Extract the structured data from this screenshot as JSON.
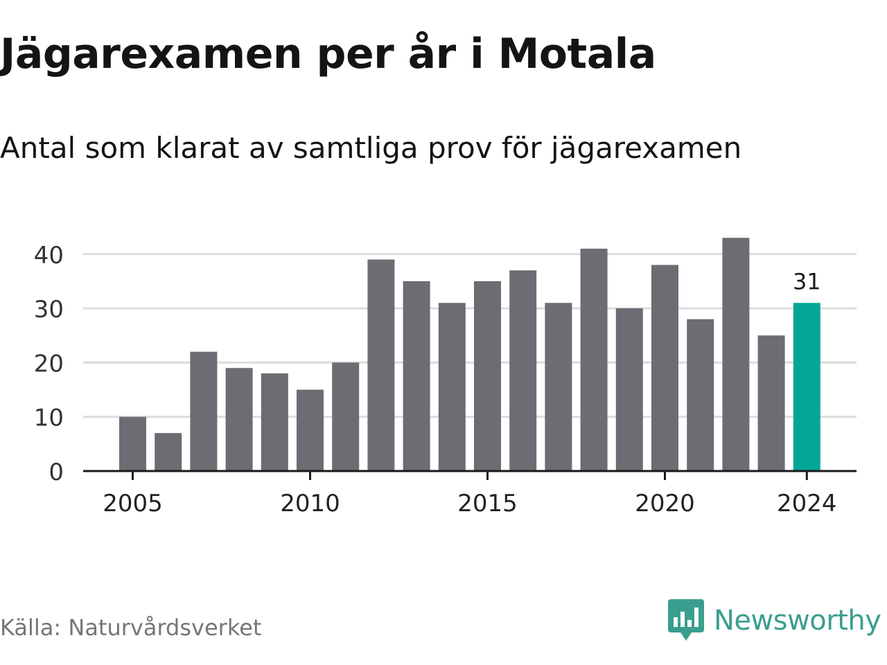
{
  "chart_data": {
    "type": "bar",
    "title": "Jägarexamen per år i Motala",
    "subtitle": "Antal som klarat av samtliga prov för jägarexamen",
    "categories": [
      2005,
      2006,
      2007,
      2008,
      2009,
      2010,
      2011,
      2012,
      2013,
      2014,
      2015,
      2016,
      2017,
      2018,
      2019,
      2020,
      2021,
      2022,
      2023,
      2024
    ],
    "values": [
      10,
      7,
      22,
      19,
      18,
      15,
      20,
      39,
      35,
      31,
      35,
      37,
      31,
      41,
      30,
      38,
      28,
      43,
      25,
      31
    ],
    "highlight": {
      "category": 2024,
      "value": 31,
      "label": "31"
    },
    "xticks": [
      2005,
      2010,
      2015,
      2020,
      2024
    ],
    "yticks": [
      0,
      10,
      20,
      30,
      40
    ],
    "ylim": [
      0,
      45
    ],
    "xlabel": "",
    "ylabel": "",
    "grid": true,
    "colors": {
      "bar": "#6d6c72",
      "highlight": "#02a697",
      "grid": "#dcdcdc",
      "axis": "#1a1a1a"
    }
  },
  "source": "Källa: Naturvårdsverket",
  "brand": {
    "name": "Newsworthy",
    "color": "#3a9e8e"
  }
}
